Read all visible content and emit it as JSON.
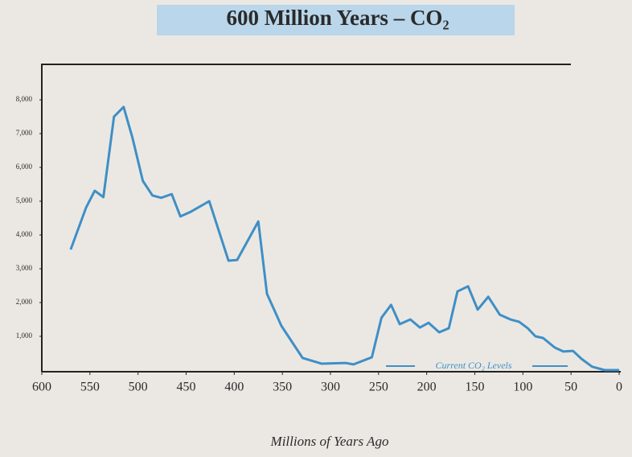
{
  "chart_data": {
    "type": "line",
    "title": "600 Million Years – CO₂",
    "x_label": "Millions of Years Ago",
    "annotation": "Current CO₂ Levels",
    "color": "#3f8fc6",
    "x": [
      570,
      554,
      545,
      536,
      525,
      515,
      506,
      495,
      485,
      476,
      465,
      456,
      445,
      426,
      406,
      397,
      375,
      366,
      351,
      329,
      309,
      284,
      276,
      257,
      247,
      237,
      228,
      217,
      207,
      198,
      187,
      177,
      168,
      157,
      147,
      136,
      124,
      113,
      104,
      95,
      87,
      79,
      67,
      58,
      48,
      39,
      28,
      15,
      0
    ],
    "values": [
      3570,
      4810,
      5310,
      5120,
      7500,
      7790,
      6900,
      5600,
      5170,
      5100,
      5210,
      4550,
      4690,
      5000,
      3240,
      3260,
      4400,
      2260,
      1310,
      360,
      190,
      210,
      170,
      380,
      1550,
      1930,
      1360,
      1500,
      1260,
      1400,
      1120,
      1240,
      2330,
      2480,
      1790,
      2170,
      1640,
      1500,
      1430,
      1240,
      1000,
      950,
      670,
      550,
      570,
      330,
      100,
      0,
      0
    ],
    "xlim": [
      600,
      0
    ],
    "xticks": [
      600,
      550,
      500,
      450,
      400,
      350,
      300,
      250,
      200,
      150,
      100,
      50,
      0
    ],
    "ylim": [
      0,
      9050
    ],
    "yticks": [
      {
        "value": 1000,
        "label": "1,000"
      },
      {
        "value": 2000,
        "label": "2,000"
      },
      {
        "value": 3000,
        "label": "3,000"
      },
      {
        "value": 4000,
        "label": "4,000"
      },
      {
        "value": 5000,
        "label": "5,000"
      },
      {
        "value": 6000,
        "label": "6,000"
      },
      {
        "value": 7000,
        "label": "7,000"
      },
      {
        "value": 8000,
        "label": "8,000"
      }
    ]
  }
}
